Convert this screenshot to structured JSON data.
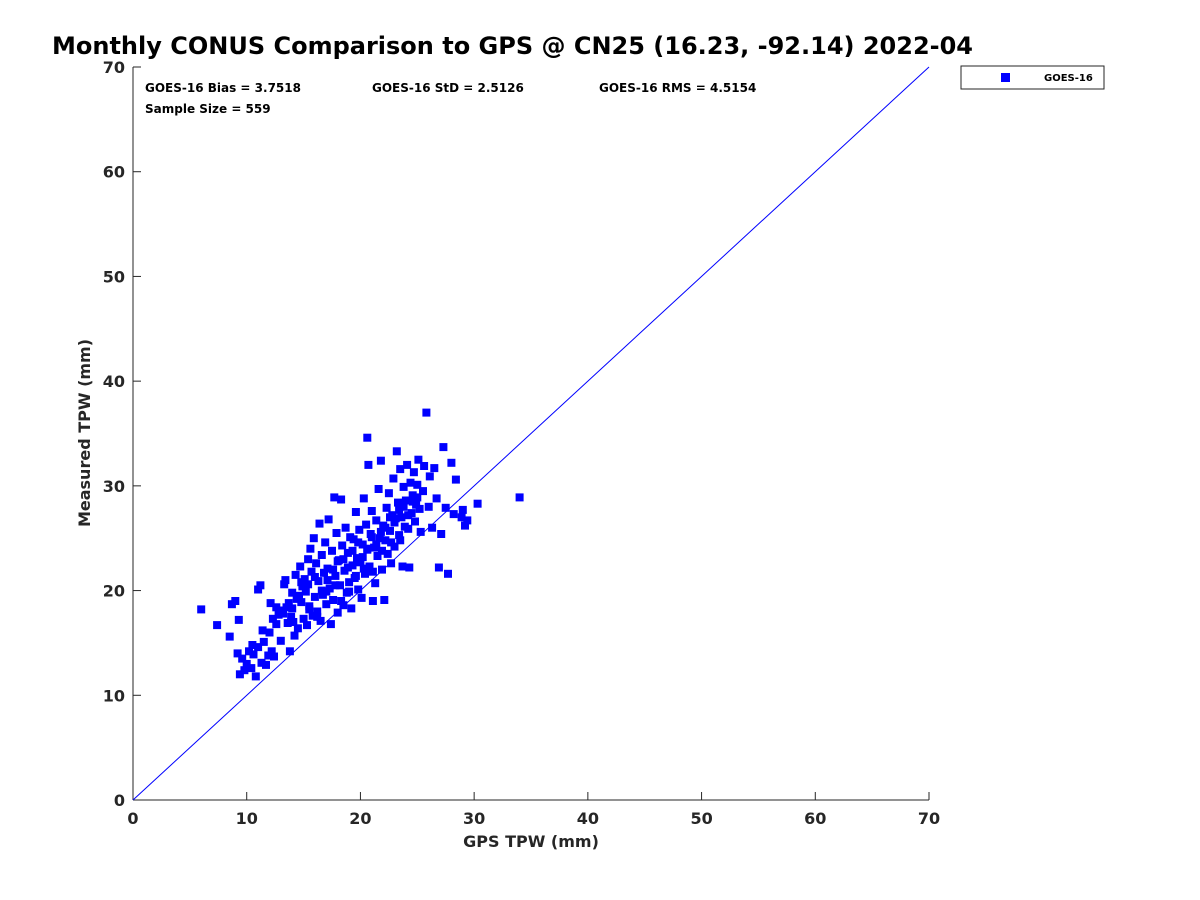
{
  "chart_data": {
    "type": "scatter",
    "title": "Monthly CONUS Comparison to GPS @ CN25 (16.23, -92.14) 2022-04",
    "xlabel": "GPS TPW (mm)",
    "ylabel": "Measured TPW (mm)",
    "xlim": [
      0,
      70
    ],
    "ylim": [
      0,
      70
    ],
    "xticks": [
      "0",
      "10",
      "20",
      "30",
      "40",
      "50",
      "60",
      "70"
    ],
    "yticks": [
      "0",
      "10",
      "20",
      "30",
      "40",
      "50",
      "60",
      "70"
    ],
    "stats": {
      "bias": "GOES-16 Bias = 3.7518",
      "std": "GOES-16 StD = 2.5126",
      "rms": "GOES-16 RMS = 4.5154",
      "sample": "Sample Size = 559"
    },
    "legend": {
      "label": "GOES-16",
      "location": "top-right outside"
    },
    "reference_line": {
      "label": "1:1",
      "from": [
        0,
        0
      ],
      "to": [
        70,
        70
      ]
    },
    "marker_color": "#0000ff",
    "series": [
      {
        "name": "GOES-16",
        "points": [
          [
            6.0,
            18.2
          ],
          [
            7.4,
            16.7
          ],
          [
            8.5,
            15.6
          ],
          [
            8.7,
            18.7
          ],
          [
            9.0,
            19.0
          ],
          [
            9.2,
            14.0
          ],
          [
            9.3,
            17.2
          ],
          [
            9.4,
            12.0
          ],
          [
            9.6,
            13.5
          ],
          [
            9.8,
            12.4
          ],
          [
            10.0,
            13.0
          ],
          [
            10.2,
            14.2
          ],
          [
            10.4,
            12.6
          ],
          [
            10.6,
            13.9
          ],
          [
            10.8,
            11.8
          ],
          [
            11.0,
            14.6
          ],
          [
            11.0,
            20.1
          ],
          [
            11.2,
            20.5
          ],
          [
            11.3,
            13.1
          ],
          [
            11.5,
            15.1
          ],
          [
            11.7,
            12.9
          ],
          [
            11.9,
            13.8
          ],
          [
            12.0,
            16.0
          ],
          [
            12.1,
            18.8
          ],
          [
            12.2,
            14.2
          ],
          [
            12.4,
            13.7
          ],
          [
            12.6,
            16.8
          ],
          [
            12.8,
            17.7
          ],
          [
            13.0,
            15.2
          ],
          [
            13.1,
            18.1
          ],
          [
            13.3,
            20.6
          ],
          [
            13.4,
            21.0
          ],
          [
            13.5,
            18.4
          ],
          [
            13.6,
            16.9
          ],
          [
            13.8,
            14.2
          ],
          [
            13.9,
            17.5
          ],
          [
            14.0,
            18.3
          ],
          [
            14.1,
            17.0
          ],
          [
            14.2,
            15.7
          ],
          [
            14.3,
            21.5
          ],
          [
            14.4,
            19.2
          ],
          [
            14.5,
            16.4
          ],
          [
            14.7,
            22.3
          ],
          [
            14.8,
            18.9
          ],
          [
            14.9,
            20.4
          ],
          [
            15.0,
            17.3
          ],
          [
            15.1,
            21.1
          ],
          [
            15.2,
            19.9
          ],
          [
            15.3,
            16.7
          ],
          [
            15.4,
            23.0
          ],
          [
            15.5,
            18.5
          ],
          [
            15.6,
            24.0
          ],
          [
            15.7,
            21.8
          ],
          [
            15.8,
            17.6
          ],
          [
            15.9,
            25.0
          ],
          [
            16.0,
            19.4
          ],
          [
            16.1,
            22.6
          ],
          [
            16.2,
            18.0
          ],
          [
            16.3,
            20.9
          ],
          [
            16.4,
            26.4
          ],
          [
            16.5,
            17.1
          ],
          [
            16.6,
            23.4
          ],
          [
            16.7,
            19.6
          ],
          [
            16.8,
            21.7
          ],
          [
            16.9,
            24.6
          ],
          [
            17.0,
            18.7
          ],
          [
            17.1,
            22.1
          ],
          [
            17.2,
            26.8
          ],
          [
            17.3,
            20.2
          ],
          [
            17.4,
            16.8
          ],
          [
            17.5,
            23.8
          ],
          [
            17.6,
            19.1
          ],
          [
            17.7,
            28.9
          ],
          [
            17.8,
            21.4
          ],
          [
            17.9,
            25.5
          ],
          [
            18.0,
            17.9
          ],
          [
            18.1,
            22.9
          ],
          [
            18.2,
            20.5
          ],
          [
            18.3,
            28.7
          ],
          [
            18.4,
            24.3
          ],
          [
            18.5,
            18.6
          ],
          [
            18.6,
            21.9
          ],
          [
            18.7,
            26.0
          ],
          [
            18.8,
            19.8
          ],
          [
            18.9,
            23.6
          ],
          [
            19.0,
            20.8
          ],
          [
            19.1,
            25.1
          ],
          [
            19.2,
            18.3
          ],
          [
            19.3,
            22.4
          ],
          [
            19.4,
            24.9
          ],
          [
            19.5,
            21.2
          ],
          [
            19.6,
            27.5
          ],
          [
            19.7,
            23.1
          ],
          [
            19.8,
            20.1
          ],
          [
            19.9,
            25.8
          ],
          [
            20.0,
            22.7
          ],
          [
            20.1,
            19.3
          ],
          [
            20.2,
            24.4
          ],
          [
            20.3,
            28.8
          ],
          [
            20.4,
            21.6
          ],
          [
            20.5,
            26.3
          ],
          [
            20.6,
            23.9
          ],
          [
            20.6,
            34.6
          ],
          [
            20.7,
            32.0
          ],
          [
            20.8,
            22.3
          ],
          [
            20.9,
            25.4
          ],
          [
            21.0,
            27.6
          ],
          [
            21.1,
            19.0
          ],
          [
            21.2,
            24.1
          ],
          [
            21.3,
            20.7
          ],
          [
            21.4,
            26.7
          ],
          [
            21.5,
            23.3
          ],
          [
            21.6,
            29.7
          ],
          [
            21.7,
            25.0
          ],
          [
            21.8,
            32.4
          ],
          [
            21.9,
            22.0
          ],
          [
            22.0,
            26.2
          ],
          [
            22.1,
            19.1
          ],
          [
            22.2,
            24.8
          ],
          [
            22.3,
            27.9
          ],
          [
            22.4,
            23.5
          ],
          [
            22.5,
            29.3
          ],
          [
            22.6,
            25.7
          ],
          [
            22.7,
            22.6
          ],
          [
            22.8,
            27.2
          ],
          [
            22.9,
            30.7
          ],
          [
            23.0,
            24.2
          ],
          [
            23.1,
            26.9
          ],
          [
            23.2,
            33.3
          ],
          [
            23.3,
            28.4
          ],
          [
            23.4,
            25.3
          ],
          [
            23.5,
            31.6
          ],
          [
            23.6,
            27.0
          ],
          [
            23.7,
            22.3
          ],
          [
            23.8,
            29.9
          ],
          [
            23.9,
            26.1
          ],
          [
            24.0,
            28.6
          ],
          [
            24.1,
            32.0
          ],
          [
            24.2,
            25.9
          ],
          [
            24.3,
            22.2
          ],
          [
            24.4,
            30.3
          ],
          [
            24.5,
            27.4
          ],
          [
            24.6,
            29.1
          ],
          [
            24.7,
            31.3
          ],
          [
            24.8,
            26.6
          ],
          [
            24.9,
            28.2
          ],
          [
            25.0,
            30.1
          ],
          [
            25.1,
            32.5
          ],
          [
            25.2,
            27.8
          ],
          [
            25.3,
            25.6
          ],
          [
            25.5,
            29.5
          ],
          [
            25.6,
            31.9
          ],
          [
            25.8,
            37.0
          ],
          [
            26.0,
            28.0
          ],
          [
            26.1,
            30.9
          ],
          [
            26.3,
            26.0
          ],
          [
            26.5,
            31.7
          ],
          [
            26.7,
            28.8
          ],
          [
            26.9,
            22.2
          ],
          [
            27.1,
            25.4
          ],
          [
            27.3,
            33.7
          ],
          [
            27.5,
            27.9
          ],
          [
            27.7,
            21.6
          ],
          [
            28.0,
            32.2
          ],
          [
            28.2,
            27.3
          ],
          [
            28.4,
            30.6
          ],
          [
            28.9,
            27.0
          ],
          [
            29.0,
            27.7
          ],
          [
            29.2,
            26.2
          ],
          [
            29.4,
            26.7
          ],
          [
            30.3,
            28.3
          ],
          [
            34.0,
            28.9
          ],
          [
            12.3,
            17.3
          ],
          [
            13.7,
            18.8
          ],
          [
            14.6,
            19.5
          ],
          [
            15.4,
            20.6
          ],
          [
            16.0,
            21.3
          ],
          [
            16.6,
            20.0
          ],
          [
            17.1,
            21.0
          ],
          [
            17.6,
            22.0
          ],
          [
            18.0,
            22.8
          ],
          [
            18.5,
            23.0
          ],
          [
            18.9,
            22.2
          ],
          [
            19.3,
            23.8
          ],
          [
            19.8,
            24.6
          ],
          [
            20.2,
            23.2
          ],
          [
            20.6,
            24.0
          ],
          [
            21.0,
            25.1
          ],
          [
            21.4,
            24.4
          ],
          [
            21.8,
            25.6
          ],
          [
            22.2,
            26.0
          ],
          [
            22.6,
            27.0
          ],
          [
            23.0,
            26.5
          ],
          [
            23.4,
            27.7
          ],
          [
            23.8,
            28.0
          ],
          [
            24.2,
            27.2
          ],
          [
            24.6,
            28.5
          ],
          [
            25.0,
            28.9
          ],
          [
            10.5,
            14.8
          ],
          [
            11.4,
            16.2
          ],
          [
            12.6,
            18.4
          ],
          [
            13.2,
            17.8
          ],
          [
            14.0,
            19.8
          ],
          [
            14.8,
            20.8
          ],
          [
            15.5,
            18.2
          ],
          [
            16.2,
            17.5
          ],
          [
            17.0,
            19.9
          ],
          [
            17.8,
            20.5
          ],
          [
            18.3,
            19.0
          ],
          [
            19.0,
            19.9
          ],
          [
            19.6,
            21.4
          ],
          [
            20.3,
            22.1
          ],
          [
            21.1,
            21.8
          ],
          [
            21.9,
            23.8
          ],
          [
            22.7,
            24.6
          ],
          [
            23.5,
            24.8
          ]
        ]
      }
    ]
  }
}
